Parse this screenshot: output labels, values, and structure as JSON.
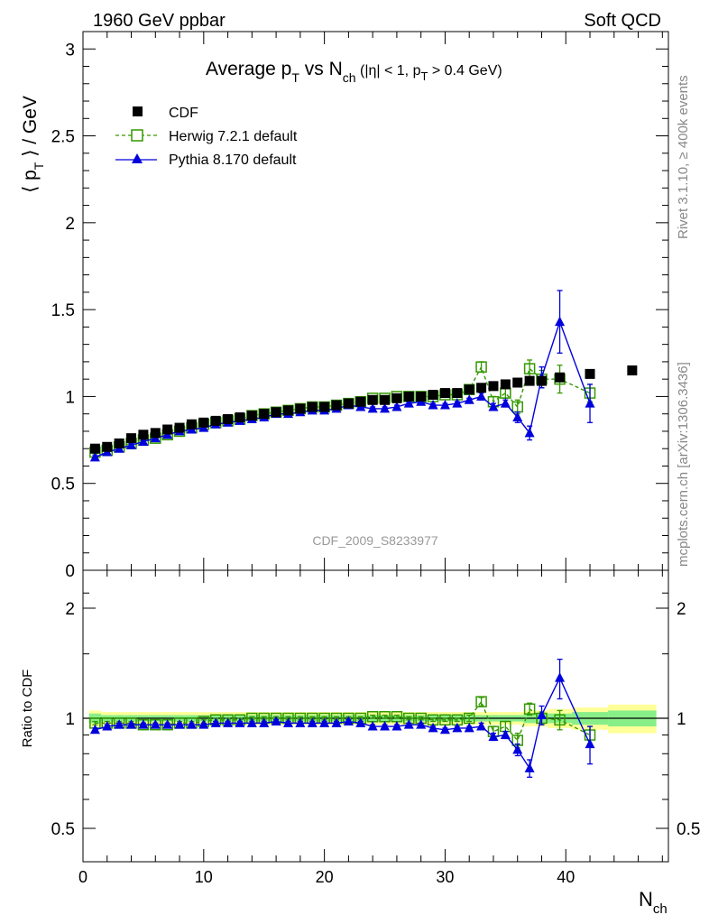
{
  "header": {
    "left": "1960 GeV ppbar",
    "right": "Soft QCD"
  },
  "side_labels": {
    "top": "Rivet 3.1.10, ≥ 400k events",
    "bottom": "mcplots.cern.ch [arXiv:1306.3436]"
  },
  "analysis_id": "CDF_2009_S8233977",
  "chart_data": [
    {
      "type": "scatter",
      "panel": "main",
      "title": {
        "main": "Average p",
        "sub_t": "T",
        "vs": " vs N",
        "sub_ch": "ch",
        "cuts_pre": " (|η| < 1, p",
        "cuts_sub": "T",
        "cuts_post": " > 0.4 GeV)"
      },
      "ylabel": {
        "pre": "⟨ p",
        "sub": "T",
        "post": " ⟩ / GeV"
      },
      "xlabel": {
        "main": "N",
        "sub": "ch"
      },
      "xlim": [
        0,
        48.5
      ],
      "ylim": [
        0,
        3.1
      ],
      "xticks": [
        0,
        10,
        20,
        30,
        40
      ],
      "yticks": [
        0.5,
        1,
        1.5,
        2,
        2.5,
        3
      ],
      "ytick_labels": [
        "0.5",
        "1",
        "1.5",
        "2",
        "2.5",
        "3"
      ],
      "legend_position": "top-left",
      "series": [
        {
          "name": "CDF",
          "style": "filled-square",
          "color": "#000000",
          "x": [
            1,
            2,
            3,
            4,
            5,
            6,
            7,
            8,
            9,
            10,
            11,
            12,
            13,
            14,
            15,
            16,
            17,
            18,
            19,
            20,
            21,
            22,
            23,
            24,
            25,
            26,
            27,
            28,
            29,
            30,
            31,
            32,
            33,
            34,
            35,
            36,
            37,
            38,
            39.5,
            42,
            45.5
          ],
          "y": [
            0.7,
            0.71,
            0.73,
            0.76,
            0.78,
            0.79,
            0.81,
            0.82,
            0.84,
            0.85,
            0.86,
            0.87,
            0.88,
            0.89,
            0.9,
            0.91,
            0.92,
            0.93,
            0.94,
            0.94,
            0.95,
            0.96,
            0.97,
            0.98,
            0.98,
            0.99,
            1.0,
            1.0,
            1.01,
            1.02,
            1.02,
            1.04,
            1.05,
            1.06,
            1.07,
            1.08,
            1.09,
            1.09,
            1.11,
            1.13,
            1.15
          ]
        },
        {
          "name": "Herwig 7.2.1 default",
          "style": "open-square-dashed",
          "color": "#339900",
          "x": [
            1,
            2,
            3,
            4,
            5,
            6,
            7,
            8,
            9,
            10,
            11,
            12,
            13,
            14,
            15,
            16,
            17,
            18,
            19,
            20,
            21,
            22,
            23,
            24,
            25,
            26,
            27,
            28,
            29,
            30,
            31,
            32,
            33,
            34,
            35,
            36,
            37,
            38,
            39.5,
            42
          ],
          "y": [
            0.68,
            0.69,
            0.71,
            0.73,
            0.75,
            0.76,
            0.78,
            0.8,
            0.82,
            0.84,
            0.85,
            0.86,
            0.87,
            0.89,
            0.9,
            0.91,
            0.92,
            0.93,
            0.94,
            0.94,
            0.95,
            0.96,
            0.97,
            0.99,
            0.99,
            1.0,
            1.0,
            1.0,
            1.0,
            1.01,
            1.01,
            1.04,
            1.17,
            0.97,
            1.02,
            0.94,
            1.16,
            1.1,
            1.1,
            1.02
          ],
          "err": [
            0.01,
            0.01,
            0.01,
            0.01,
            0.01,
            0.01,
            0.01,
            0.01,
            0.01,
            0.01,
            0.01,
            0.01,
            0.01,
            0.01,
            0.01,
            0.01,
            0.01,
            0.01,
            0.01,
            0.01,
            0.01,
            0.01,
            0.01,
            0.01,
            0.01,
            0.01,
            0.01,
            0.01,
            0.01,
            0.01,
            0.01,
            0.02,
            0.03,
            0.03,
            0.03,
            0.04,
            0.05,
            0.05,
            0.08,
            0.05
          ]
        },
        {
          "name": "Pythia 8.170 default",
          "style": "filled-triangle-solid",
          "color": "#0000dd",
          "x": [
            1,
            2,
            3,
            4,
            5,
            6,
            7,
            8,
            9,
            10,
            11,
            12,
            13,
            14,
            15,
            16,
            17,
            18,
            19,
            20,
            21,
            22,
            23,
            24,
            25,
            26,
            27,
            28,
            29,
            30,
            31,
            32,
            33,
            34,
            35,
            36,
            37,
            38,
            39.5,
            42
          ],
          "y": [
            0.65,
            0.68,
            0.7,
            0.72,
            0.74,
            0.76,
            0.78,
            0.8,
            0.81,
            0.82,
            0.84,
            0.85,
            0.86,
            0.87,
            0.88,
            0.9,
            0.9,
            0.91,
            0.92,
            0.92,
            0.93,
            0.95,
            0.94,
            0.93,
            0.93,
            0.94,
            0.96,
            0.97,
            0.95,
            0.95,
            0.96,
            0.98,
            1.0,
            0.94,
            0.96,
            0.88,
            0.79,
            1.11,
            1.43,
            0.96
          ],
          "err": [
            0.01,
            0.01,
            0.01,
            0.01,
            0.01,
            0.01,
            0.01,
            0.01,
            0.01,
            0.01,
            0.01,
            0.01,
            0.01,
            0.01,
            0.01,
            0.01,
            0.01,
            0.01,
            0.01,
            0.01,
            0.01,
            0.01,
            0.01,
            0.01,
            0.01,
            0.01,
            0.01,
            0.01,
            0.01,
            0.01,
            0.01,
            0.01,
            0.02,
            0.02,
            0.02,
            0.03,
            0.04,
            0.06,
            0.18,
            0.11
          ]
        }
      ]
    },
    {
      "type": "scatter",
      "panel": "ratio",
      "ylabel": "Ratio to CDF",
      "xlim": [
        0,
        48.5
      ],
      "ylim": [
        0.35,
        2.3
      ],
      "yticks": [
        0.5,
        1,
        2
      ],
      "ytick_labels": [
        "0.5",
        "1",
        "2"
      ],
      "band": {
        "x_edges": [
          0.5,
          1.5,
          2.5,
          3.5,
          4.5,
          5.5,
          6.5,
          7.5,
          8.5,
          9.5,
          10.5,
          11.5,
          12.5,
          13.5,
          14.5,
          15.5,
          16.5,
          17.5,
          18.5,
          19.5,
          20.5,
          21.5,
          22.5,
          23.5,
          24.5,
          25.5,
          26.5,
          27.5,
          28.5,
          29.5,
          30.5,
          31.5,
          32.5,
          33.5,
          34.5,
          35.5,
          36.5,
          37.5,
          38.5,
          40.5,
          43.5,
          47.5
        ],
        "inner": [
          0.03,
          0.02,
          0.02,
          0.02,
          0.02,
          0.02,
          0.02,
          0.02,
          0.02,
          0.02,
          0.02,
          0.02,
          0.02,
          0.02,
          0.02,
          0.02,
          0.02,
          0.02,
          0.02,
          0.02,
          0.02,
          0.02,
          0.02,
          0.02,
          0.02,
          0.02,
          0.02,
          0.02,
          0.02,
          0.02,
          0.02,
          0.02,
          0.02,
          0.02,
          0.02,
          0.02,
          0.03,
          0.03,
          0.03,
          0.04,
          0.05
        ],
        "outer": [
          0.05,
          0.04,
          0.04,
          0.04,
          0.04,
          0.04,
          0.04,
          0.04,
          0.04,
          0.04,
          0.04,
          0.04,
          0.04,
          0.04,
          0.04,
          0.04,
          0.04,
          0.04,
          0.04,
          0.04,
          0.04,
          0.04,
          0.04,
          0.04,
          0.04,
          0.04,
          0.04,
          0.04,
          0.04,
          0.04,
          0.04,
          0.04,
          0.04,
          0.04,
          0.04,
          0.04,
          0.05,
          0.05,
          0.06,
          0.07,
          0.09
        ],
        "inner_color": "#88ee88",
        "outer_color": "#ffff99"
      },
      "series": [
        {
          "name": "Herwig 7.2.1 default",
          "x": [
            1,
            2,
            3,
            4,
            5,
            6,
            7,
            8,
            9,
            10,
            11,
            12,
            13,
            14,
            15,
            16,
            17,
            18,
            19,
            20,
            21,
            22,
            23,
            24,
            25,
            26,
            27,
            28,
            29,
            30,
            31,
            32,
            33,
            34,
            35,
            36,
            37,
            38,
            39.5,
            42
          ],
          "y": [
            0.97,
            0.97,
            0.97,
            0.97,
            0.96,
            0.96,
            0.96,
            0.97,
            0.97,
            0.98,
            0.99,
            0.99,
            0.99,
            1.0,
            1.0,
            1.0,
            1.0,
            1.0,
            1.0,
            1.0,
            1.0,
            1.0,
            1.0,
            1.01,
            1.01,
            1.01,
            1.0,
            1.0,
            0.99,
            0.99,
            0.99,
            1.0,
            1.11,
            0.92,
            0.95,
            0.87,
            1.06,
            1.0,
            0.99,
            0.9
          ],
          "err": [
            0.01,
            0.01,
            0.01,
            0.01,
            0.01,
            0.01,
            0.01,
            0.01,
            0.01,
            0.01,
            0.01,
            0.01,
            0.01,
            0.01,
            0.01,
            0.01,
            0.01,
            0.01,
            0.01,
            0.01,
            0.01,
            0.01,
            0.01,
            0.01,
            0.01,
            0.01,
            0.01,
            0.01,
            0.01,
            0.01,
            0.01,
            0.02,
            0.03,
            0.03,
            0.03,
            0.04,
            0.04,
            0.04,
            0.06,
            0.05
          ]
        },
        {
          "name": "Pythia 8.170 default",
          "x": [
            1,
            2,
            3,
            4,
            5,
            6,
            7,
            8,
            9,
            10,
            11,
            12,
            13,
            14,
            15,
            16,
            17,
            18,
            19,
            20,
            21,
            22,
            23,
            24,
            25,
            26,
            27,
            28,
            29,
            30,
            31,
            32,
            33,
            34,
            35,
            36,
            37,
            38,
            39.5,
            42
          ],
          "y": [
            0.93,
            0.95,
            0.96,
            0.96,
            0.96,
            0.96,
            0.96,
            0.96,
            0.96,
            0.96,
            0.97,
            0.97,
            0.97,
            0.97,
            0.97,
            0.98,
            0.97,
            0.97,
            0.97,
            0.97,
            0.97,
            0.98,
            0.97,
            0.95,
            0.95,
            0.95,
            0.96,
            0.96,
            0.94,
            0.93,
            0.94,
            0.94,
            0.95,
            0.89,
            0.9,
            0.82,
            0.73,
            1.02,
            1.29,
            0.85
          ],
          "err": [
            0.01,
            0.01,
            0.01,
            0.01,
            0.01,
            0.01,
            0.01,
            0.01,
            0.01,
            0.01,
            0.01,
            0.01,
            0.01,
            0.01,
            0.01,
            0.01,
            0.01,
            0.01,
            0.01,
            0.01,
            0.01,
            0.01,
            0.01,
            0.01,
            0.01,
            0.01,
            0.01,
            0.01,
            0.01,
            0.01,
            0.01,
            0.01,
            0.02,
            0.02,
            0.02,
            0.03,
            0.04,
            0.06,
            0.16,
            0.1
          ]
        }
      ]
    }
  ]
}
